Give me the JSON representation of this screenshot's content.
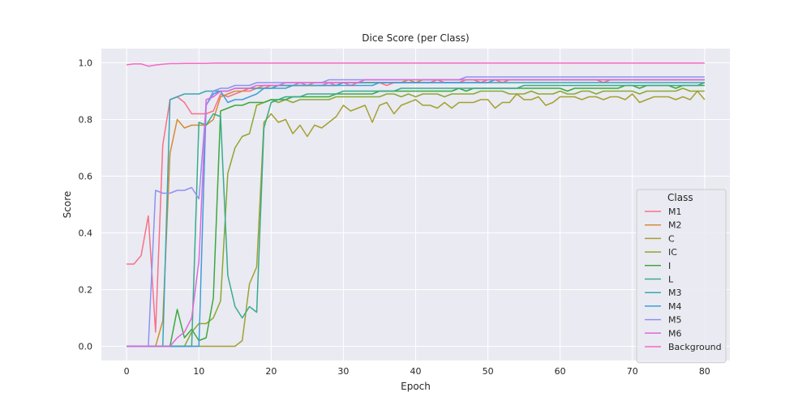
{
  "chart_data": {
    "type": "line",
    "title": "Dice Score (per Class)",
    "xlabel": "Epoch",
    "ylabel": "Score",
    "xlim": [
      -3.5,
      83.5
    ],
    "ylim": [
      -0.05,
      1.05
    ],
    "xticks": [
      0,
      10,
      20,
      30,
      40,
      50,
      60,
      70,
      80
    ],
    "yticks": [
      0.0,
      0.2,
      0.4,
      0.6,
      0.8,
      1.0
    ],
    "xtick_labels": [
      "0",
      "10",
      "20",
      "30",
      "40",
      "50",
      "60",
      "70",
      "80"
    ],
    "ytick_labels": [
      "0.0",
      "0.2",
      "0.4",
      "0.6",
      "0.8",
      "1.0"
    ],
    "grid": true,
    "legend": {
      "title": "Class",
      "position": "lower-right"
    },
    "colors": {
      "background": "#eaeaf2",
      "grid": "#ffffff"
    },
    "series": [
      {
        "name": "M1",
        "color": "#f77189",
        "values": [
          0.29,
          0.29,
          0.32,
          0.46,
          0.05,
          0.71,
          0.87,
          0.88,
          0.86,
          0.82,
          0.82,
          0.82,
          0.83,
          0.89,
          0.88,
          0.89,
          0.9,
          0.9,
          0.91,
          0.91,
          0.92,
          0.92,
          0.92,
          0.92,
          0.93,
          0.92,
          0.92,
          0.92,
          0.93,
          0.92,
          0.93,
          0.92,
          0.93,
          0.93,
          0.93,
          0.93,
          0.92,
          0.93,
          0.93,
          0.93,
          0.93,
          0.93,
          0.93,
          0.94,
          0.93,
          0.93,
          0.93,
          0.94,
          0.94,
          0.93,
          0.94,
          0.94,
          0.93,
          0.94,
          0.94,
          0.94,
          0.94,
          0.94,
          0.94,
          0.94,
          0.94,
          0.94,
          0.94,
          0.94,
          0.94,
          0.94,
          0.93,
          0.94,
          0.94,
          0.94,
          0.94,
          0.94,
          0.94,
          0.94,
          0.94,
          0.94,
          0.94,
          0.94,
          0.94,
          0.94,
          0.94
        ]
      },
      {
        "name": "M2",
        "color": "#d58c32",
        "values": [
          0.0,
          0.0,
          0.0,
          0.0,
          0.0,
          0.09,
          0.68,
          0.8,
          0.77,
          0.78,
          0.78,
          0.78,
          0.8,
          0.88,
          0.89,
          0.9,
          0.9,
          0.91,
          0.91,
          0.92,
          0.92,
          0.92,
          0.92,
          0.92,
          0.92,
          0.92,
          0.93,
          0.93,
          0.93,
          0.93,
          0.93,
          0.93,
          0.93,
          0.93,
          0.93,
          0.93,
          0.93,
          0.93,
          0.93,
          0.94,
          0.93,
          0.94,
          0.94,
          0.94,
          0.94,
          0.94,
          0.94,
          0.94,
          0.94,
          0.94,
          0.94,
          0.94,
          0.94,
          0.94,
          0.94,
          0.94,
          0.94,
          0.94,
          0.94,
          0.94,
          0.94,
          0.94,
          0.94,
          0.94,
          0.94,
          0.94,
          0.94,
          0.94,
          0.94,
          0.94,
          0.94,
          0.94,
          0.94,
          0.94,
          0.94,
          0.94,
          0.94,
          0.94,
          0.94,
          0.94,
          0.94
        ]
      },
      {
        "name": "C",
        "color": "#a4a031",
        "values": [
          0.0,
          0.0,
          0.0,
          0.0,
          0.0,
          0.0,
          0.0,
          0.0,
          0.0,
          0.0,
          0.0,
          0.0,
          0.0,
          0.0,
          0.0,
          0.0,
          0.02,
          0.22,
          0.28,
          0.79,
          0.82,
          0.79,
          0.8,
          0.75,
          0.78,
          0.74,
          0.78,
          0.77,
          0.79,
          0.81,
          0.85,
          0.83,
          0.84,
          0.85,
          0.79,
          0.85,
          0.86,
          0.82,
          0.85,
          0.86,
          0.87,
          0.85,
          0.85,
          0.84,
          0.86,
          0.84,
          0.86,
          0.86,
          0.86,
          0.87,
          0.87,
          0.84,
          0.86,
          0.86,
          0.89,
          0.87,
          0.87,
          0.88,
          0.85,
          0.86,
          0.88,
          0.88,
          0.88,
          0.87,
          0.88,
          0.88,
          0.87,
          0.88,
          0.88,
          0.87,
          0.89,
          0.86,
          0.87,
          0.88,
          0.88,
          0.88,
          0.87,
          0.88,
          0.87,
          0.9,
          0.87
        ]
      },
      {
        "name": "IC",
        "color": "#89a92f",
        "values": [
          0.0,
          0.0,
          0.0,
          0.0,
          0.0,
          0.0,
          0.0,
          0.0,
          0.0,
          0.05,
          0.08,
          0.08,
          0.1,
          0.16,
          0.61,
          0.7,
          0.74,
          0.75,
          0.85,
          0.86,
          0.87,
          0.86,
          0.87,
          0.86,
          0.87,
          0.87,
          0.87,
          0.87,
          0.87,
          0.88,
          0.88,
          0.88,
          0.88,
          0.88,
          0.88,
          0.88,
          0.89,
          0.89,
          0.88,
          0.89,
          0.88,
          0.89,
          0.89,
          0.89,
          0.88,
          0.89,
          0.89,
          0.89,
          0.89,
          0.9,
          0.9,
          0.9,
          0.9,
          0.89,
          0.89,
          0.89,
          0.9,
          0.89,
          0.89,
          0.89,
          0.9,
          0.89,
          0.89,
          0.9,
          0.9,
          0.89,
          0.9,
          0.9,
          0.9,
          0.9,
          0.9,
          0.89,
          0.9,
          0.9,
          0.9,
          0.9,
          0.9,
          0.91,
          0.9,
          0.9,
          0.9
        ]
      },
      {
        "name": "I",
        "color": "#3ba93c",
        "values": [
          0.0,
          0.0,
          0.0,
          0.0,
          0.0,
          0.0,
          0.0,
          0.13,
          0.03,
          0.06,
          0.02,
          0.03,
          0.17,
          0.83,
          0.84,
          0.85,
          0.85,
          0.86,
          0.86,
          0.86,
          0.87,
          0.87,
          0.87,
          0.88,
          0.88,
          0.88,
          0.88,
          0.88,
          0.88,
          0.89,
          0.89,
          0.89,
          0.89,
          0.89,
          0.89,
          0.9,
          0.9,
          0.9,
          0.9,
          0.9,
          0.9,
          0.9,
          0.9,
          0.9,
          0.9,
          0.9,
          0.91,
          0.9,
          0.91,
          0.91,
          0.91,
          0.91,
          0.91,
          0.91,
          0.91,
          0.91,
          0.91,
          0.91,
          0.91,
          0.91,
          0.91,
          0.9,
          0.91,
          0.91,
          0.91,
          0.91,
          0.91,
          0.91,
          0.91,
          0.92,
          0.92,
          0.91,
          0.92,
          0.92,
          0.92,
          0.92,
          0.91,
          0.92,
          0.92,
          0.92,
          0.92
        ]
      },
      {
        "name": "L",
        "color": "#37ac8b",
        "values": [
          0.0,
          0.0,
          0.0,
          0.0,
          0.0,
          0.0,
          0.0,
          0.0,
          0.0,
          0.0,
          0.79,
          0.78,
          0.82,
          0.81,
          0.25,
          0.14,
          0.1,
          0.14,
          0.12,
          0.77,
          0.86,
          0.87,
          0.88,
          0.88,
          0.88,
          0.89,
          0.89,
          0.89,
          0.89,
          0.89,
          0.9,
          0.9,
          0.9,
          0.9,
          0.9,
          0.9,
          0.9,
          0.9,
          0.91,
          0.91,
          0.91,
          0.91,
          0.91,
          0.91,
          0.91,
          0.91,
          0.91,
          0.91,
          0.91,
          0.91,
          0.91,
          0.91,
          0.91,
          0.91,
          0.91,
          0.92,
          0.92,
          0.92,
          0.92,
          0.92,
          0.92,
          0.92,
          0.92,
          0.92,
          0.92,
          0.92,
          0.92,
          0.92,
          0.92,
          0.92,
          0.92,
          0.92,
          0.92,
          0.92,
          0.92,
          0.92,
          0.92,
          0.92,
          0.92,
          0.92,
          0.93
        ]
      },
      {
        "name": "M3",
        "color": "#39a7b0",
        "values": [
          0.0,
          0.0,
          0.0,
          0.0,
          0.0,
          0.0,
          0.87,
          0.88,
          0.89,
          0.89,
          0.89,
          0.9,
          0.9,
          0.9,
          0.9,
          0.91,
          0.91,
          0.91,
          0.91,
          0.91,
          0.91,
          0.92,
          0.92,
          0.92,
          0.92,
          0.92,
          0.92,
          0.92,
          0.92,
          0.92,
          0.93,
          0.93,
          0.93,
          0.93,
          0.93,
          0.93,
          0.93,
          0.93,
          0.93,
          0.93,
          0.93,
          0.93,
          0.93,
          0.93,
          0.93,
          0.93,
          0.93,
          0.93,
          0.93,
          0.93,
          0.93,
          0.93,
          0.93,
          0.93,
          0.93,
          0.93,
          0.93,
          0.93,
          0.93,
          0.93,
          0.93,
          0.93,
          0.93,
          0.93,
          0.93,
          0.93,
          0.93,
          0.93,
          0.93,
          0.93,
          0.93,
          0.93,
          0.93,
          0.93,
          0.93,
          0.93,
          0.93,
          0.93,
          0.93,
          0.93,
          0.93
        ]
      },
      {
        "name": "M4",
        "color": "#3c9fd9",
        "values": [
          0.0,
          0.0,
          0.0,
          0.0,
          0.0,
          0.0,
          0.0,
          0.0,
          0.0,
          0.0,
          0.0,
          0.85,
          0.89,
          0.9,
          0.86,
          0.87,
          0.87,
          0.88,
          0.89,
          0.91,
          0.91,
          0.91,
          0.91,
          0.92,
          0.92,
          0.92,
          0.92,
          0.92,
          0.92,
          0.92,
          0.92,
          0.92,
          0.92,
          0.92,
          0.92,
          0.93,
          0.93,
          0.93,
          0.93,
          0.93,
          0.93,
          0.93,
          0.93,
          0.93,
          0.93,
          0.93,
          0.93,
          0.93,
          0.93,
          0.93,
          0.93,
          0.94,
          0.94,
          0.94,
          0.94,
          0.94,
          0.94,
          0.94,
          0.94,
          0.94,
          0.94,
          0.94,
          0.94,
          0.94,
          0.94,
          0.94,
          0.94,
          0.94,
          0.94,
          0.94,
          0.94,
          0.94,
          0.94,
          0.94,
          0.94,
          0.94,
          0.94,
          0.94,
          0.94,
          0.94,
          0.94
        ]
      },
      {
        "name": "M5",
        "color": "#8e92f0",
        "values": [
          0.0,
          0.0,
          0.0,
          0.0,
          0.55,
          0.54,
          0.54,
          0.55,
          0.55,
          0.56,
          0.52,
          0.85,
          0.9,
          0.91,
          0.91,
          0.92,
          0.92,
          0.92,
          0.93,
          0.93,
          0.93,
          0.93,
          0.93,
          0.93,
          0.93,
          0.93,
          0.93,
          0.93,
          0.94,
          0.94,
          0.94,
          0.94,
          0.94,
          0.94,
          0.94,
          0.94,
          0.94,
          0.94,
          0.94,
          0.94,
          0.94,
          0.94,
          0.94,
          0.94,
          0.94,
          0.94,
          0.94,
          0.95,
          0.95,
          0.95,
          0.95,
          0.95,
          0.95,
          0.95,
          0.95,
          0.95,
          0.95,
          0.95,
          0.95,
          0.95,
          0.95,
          0.95,
          0.95,
          0.95,
          0.95,
          0.95,
          0.95,
          0.95,
          0.95,
          0.95,
          0.95,
          0.95,
          0.95,
          0.95,
          0.95,
          0.95,
          0.95,
          0.95,
          0.95,
          0.95,
          0.95
        ]
      },
      {
        "name": "M6",
        "color": "#e067e0",
        "values": [
          0.0,
          0.0,
          0.0,
          0.0,
          0.0,
          0.0,
          0.0,
          0.03,
          0.05,
          0.1,
          0.3,
          0.87,
          0.88,
          0.9,
          0.9,
          0.91,
          0.91,
          0.91,
          0.92,
          0.92,
          0.92,
          0.92,
          0.93,
          0.93,
          0.93,
          0.93,
          0.93,
          0.93,
          0.93,
          0.93,
          0.93,
          0.93,
          0.93,
          0.94,
          0.94,
          0.94,
          0.94,
          0.94,
          0.94,
          0.94,
          0.94,
          0.94,
          0.94,
          0.94,
          0.94,
          0.94,
          0.94,
          0.94,
          0.94,
          0.94,
          0.94,
          0.94,
          0.94,
          0.94,
          0.94,
          0.94,
          0.94,
          0.94,
          0.94,
          0.94,
          0.94,
          0.94,
          0.94,
          0.94,
          0.94,
          0.94,
          0.94,
          0.94,
          0.94,
          0.94,
          0.94,
          0.94,
          0.94,
          0.94,
          0.94,
          0.94,
          0.94,
          0.94,
          0.94,
          0.94,
          0.94
        ]
      },
      {
        "name": "Background",
        "color": "#f668c2",
        "values": [
          0.993,
          0.996,
          0.996,
          0.988,
          0.992,
          0.995,
          0.997,
          0.997,
          0.998,
          0.998,
          0.998,
          0.998,
          0.999,
          0.999,
          0.999,
          0.999,
          0.999,
          0.999,
          0.999,
          0.999,
          0.999,
          0.999,
          0.999,
          0.999,
          0.999,
          0.999,
          0.999,
          0.999,
          0.999,
          0.999,
          0.999,
          0.999,
          0.999,
          0.999,
          0.999,
          0.999,
          0.999,
          0.999,
          0.999,
          0.999,
          0.999,
          0.999,
          0.999,
          0.999,
          0.999,
          0.999,
          0.999,
          0.999,
          0.999,
          0.999,
          0.999,
          0.999,
          0.999,
          0.999,
          0.999,
          0.999,
          0.999,
          0.999,
          0.999,
          0.999,
          0.999,
          0.999,
          0.999,
          0.999,
          0.999,
          0.999,
          0.999,
          0.999,
          0.999,
          0.999,
          0.999,
          0.999,
          0.999,
          0.999,
          0.999,
          0.999,
          0.999,
          0.999,
          0.999,
          0.999,
          0.999
        ]
      }
    ]
  }
}
